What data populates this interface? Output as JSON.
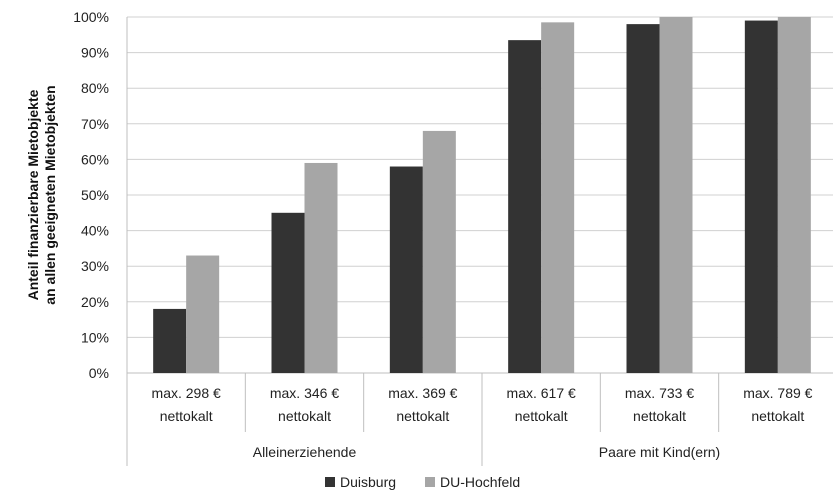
{
  "chart_data": {
    "type": "bar",
    "ylabel_lines": [
      "Anteil finanzierbare Mietobjekte",
      "an allen geeigneten Mietobjekten"
    ],
    "ylim": [
      0,
      100
    ],
    "yticks": [
      0,
      10,
      20,
      30,
      40,
      50,
      60,
      70,
      80,
      90,
      100
    ],
    "ytick_suffix": "%",
    "grid": true,
    "categories": [
      [
        "max. 298 €",
        "nettokalt"
      ],
      [
        "max. 346 €",
        "nettokalt"
      ],
      [
        "max. 369 €",
        "nettokalt"
      ],
      [
        "max. 617 €",
        "nettokalt"
      ],
      [
        "max. 733 €",
        "nettokalt"
      ],
      [
        "max. 789 €",
        "nettokalt"
      ]
    ],
    "groups": [
      {
        "label": "Alleinerziehende",
        "count": 3
      },
      {
        "label": "Paare mit Kind(ern)",
        "count": 3
      }
    ],
    "series": [
      {
        "name": "Duisburg",
        "color": "#333333",
        "values": [
          18,
          45,
          58,
          93.5,
          98,
          99
        ]
      },
      {
        "name": "DU-Hochfeld",
        "color": "#a6a6a6",
        "values": [
          33,
          59,
          68,
          98.5,
          100,
          100
        ]
      }
    ],
    "legend_position": "bottom"
  }
}
